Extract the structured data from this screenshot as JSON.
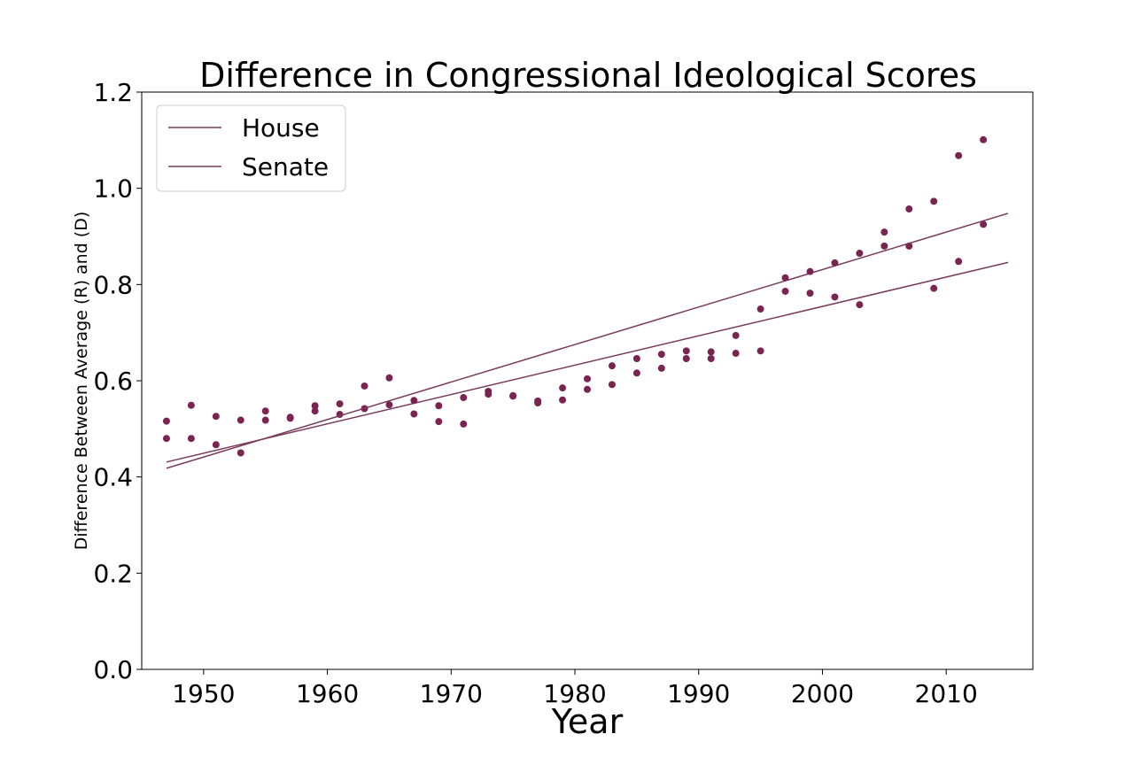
{
  "chart_data": {
    "type": "scatter",
    "title": "Difference in Congressional Ideological Scores",
    "xlabel": "Year",
    "ylabel": "Difference Between Average (R) and (D)",
    "xlim": [
      1945,
      2017
    ],
    "ylim": [
      0.0,
      1.2
    ],
    "xticks": [
      1950,
      1960,
      1970,
      1980,
      1990,
      2000,
      2010
    ],
    "xtick_labels": [
      "1950",
      "1960",
      "1970",
      "1980",
      "1990",
      "2000",
      "2010"
    ],
    "yticks": [
      0.0,
      0.2,
      0.4,
      0.6,
      0.8,
      1.0,
      1.2
    ],
    "ytick_labels": [
      "0.0",
      "0.2",
      "0.4",
      "0.6",
      "0.8",
      "1.0",
      "1.2"
    ],
    "grid": false,
    "legend_position": "upper-left",
    "colors": {
      "points": "#7a2452",
      "house_line": "#7a3a5a",
      "senate_line": "#7a3a5a"
    },
    "series": [
      {
        "name": "House",
        "trendline": {
          "x": [
            1947,
            2015
          ],
          "y": [
            0.431,
            0.846
          ]
        },
        "points": [
          [
            1947,
            0.48
          ],
          [
            1949,
            0.48
          ],
          [
            1951,
            0.467
          ],
          [
            1953,
            0.45
          ],
          [
            1955,
            0.518
          ],
          [
            1957,
            0.522
          ],
          [
            1959,
            0.537
          ],
          [
            1961,
            0.53
          ],
          [
            1963,
            0.542
          ],
          [
            1965,
            0.55
          ],
          [
            1967,
            0.531
          ],
          [
            1969,
            0.515
          ],
          [
            1971,
            0.51
          ],
          [
            1973,
            0.572
          ],
          [
            1975,
            0.568
          ],
          [
            1977,
            0.554
          ],
          [
            1979,
            0.56
          ],
          [
            1981,
            0.582
          ],
          [
            1983,
            0.592
          ],
          [
            1985,
            0.616
          ],
          [
            1987,
            0.626
          ],
          [
            1989,
            0.646
          ],
          [
            1991,
            0.646
          ],
          [
            1993,
            0.657
          ],
          [
            1995,
            0.662
          ],
          [
            1997,
            0.786
          ],
          [
            1999,
            0.782
          ],
          [
            2001,
            0.774
          ],
          [
            2003,
            0.758
          ],
          [
            2005,
            0.88
          ],
          [
            2007,
            0.88
          ],
          [
            2009,
            0.792
          ],
          [
            2011,
            0.848
          ],
          [
            2013,
            0.925
          ]
        ]
      },
      {
        "name": "Senate",
        "trendline": {
          "x": [
            1947,
            2015
          ],
          "y": [
            0.418,
            0.948
          ]
        },
        "points": [
          [
            1947,
            0.516
          ],
          [
            1949,
            0.549
          ],
          [
            1951,
            0.526
          ],
          [
            1953,
            0.518
          ],
          [
            1955,
            0.537
          ],
          [
            1957,
            0.524
          ],
          [
            1959,
            0.548
          ],
          [
            1961,
            0.552
          ],
          [
            1963,
            0.589
          ],
          [
            1965,
            0.606
          ],
          [
            1967,
            0.559
          ],
          [
            1969,
            0.548
          ],
          [
            1971,
            0.565
          ],
          [
            1973,
            0.578
          ],
          [
            1975,
            0.569
          ],
          [
            1977,
            0.558
          ],
          [
            1979,
            0.585
          ],
          [
            1981,
            0.604
          ],
          [
            1983,
            0.631
          ],
          [
            1985,
            0.646
          ],
          [
            1987,
            0.655
          ],
          [
            1989,
            0.662
          ],
          [
            1991,
            0.66
          ],
          [
            1993,
            0.694
          ],
          [
            1995,
            0.749
          ],
          [
            1997,
            0.814
          ],
          [
            1999,
            0.827
          ],
          [
            2001,
            0.845
          ],
          [
            2003,
            0.865
          ],
          [
            2005,
            0.909
          ],
          [
            2007,
            0.957
          ],
          [
            2009,
            0.973
          ],
          [
            2011,
            1.068
          ],
          [
            2013,
            1.101
          ]
        ]
      }
    ]
  }
}
